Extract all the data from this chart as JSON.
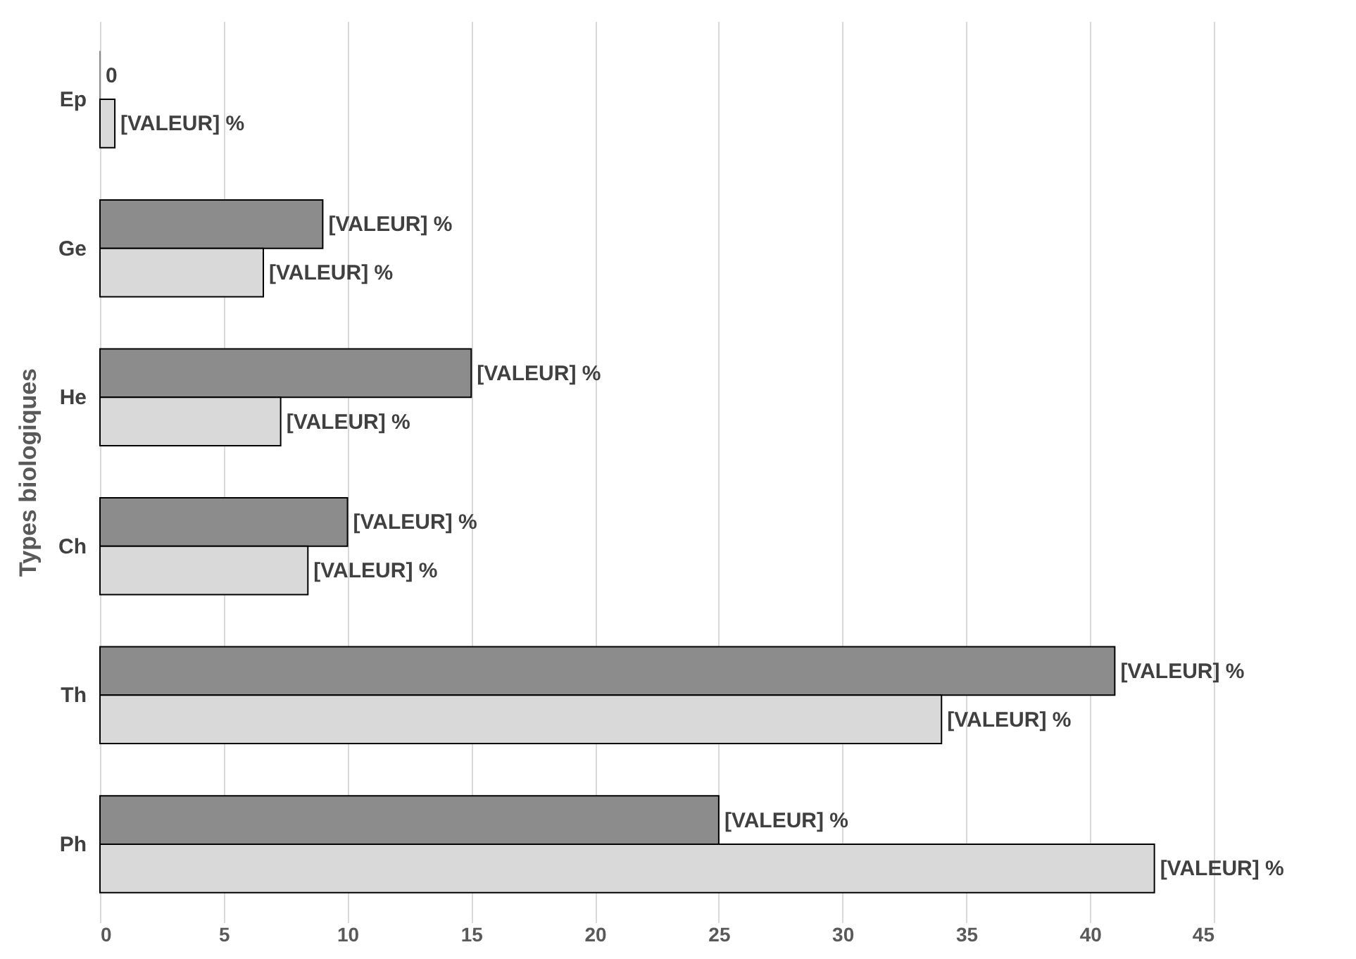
{
  "chart_data": {
    "type": "bar",
    "orientation": "horizontal",
    "ylabel": "Types biologiques",
    "categories": [
      "Ep",
      "Ge",
      "He",
      "Ch",
      "Th",
      "Ph"
    ],
    "series": [
      {
        "color": "#8c8c8c",
        "values": [
          0,
          9,
          15,
          10,
          41,
          25
        ],
        "value_labels": [
          "0",
          "[VALEUR] %",
          "[VALEUR] %",
          "[VALEUR] %",
          "[VALEUR] %",
          "[VALEUR] %"
        ]
      },
      {
        "color": "#d9d9d9",
        "values": [
          0.6,
          6.6,
          7.3,
          8.4,
          34,
          42.6
        ],
        "value_labels": [
          "[VALEUR] %",
          "[VALEUR] %",
          "[VALEUR] %",
          "[VALEUR] %",
          "[VALEUR] %",
          "[VALEUR] %"
        ]
      }
    ],
    "xlim": [
      0,
      45
    ],
    "xticks": [
      0,
      5,
      10,
      15,
      20,
      25,
      30,
      35,
      40,
      45
    ],
    "grid": "x"
  }
}
